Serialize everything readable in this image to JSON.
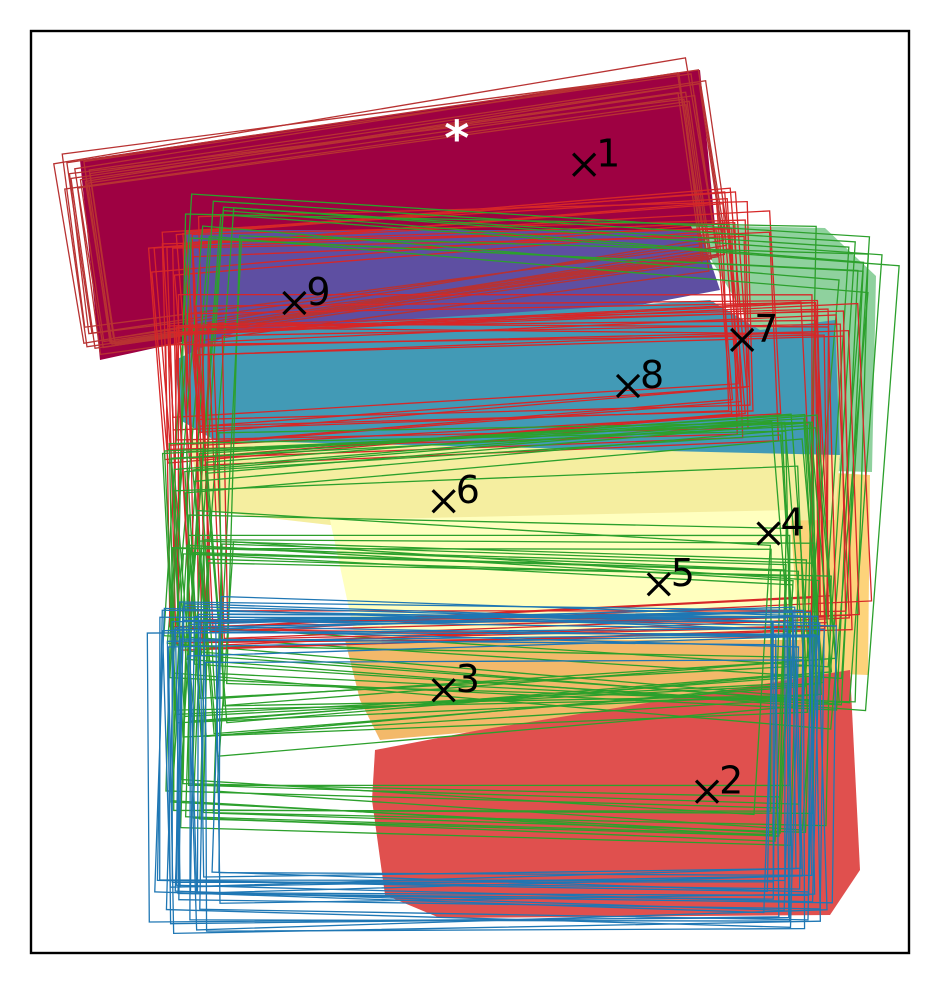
{
  "chart_data": {
    "type": "scatter",
    "title": "",
    "xlabel": "",
    "ylabel": "",
    "xlim": [
      0,
      1
    ],
    "ylim": [
      0,
      1
    ],
    "axes_ticks": "none",
    "grid": false,
    "legend": "none",
    "description_of_marks": "overlapping rotated rectangle outlines grouped into colored regions, with cluster centers marked by x and numbered",
    "palette": {
      "c1": "#9e0142",
      "c2": "#d53e4f",
      "c3": "#f46d43",
      "c4": "#fdae61",
      "c5": "#fee08b",
      "c6": "#ffffbf",
      "c7": "#abdda4",
      "c8": "#3288bd",
      "c9": "#5e4fa2",
      "outline_red": "#d62728",
      "outline_green": "#2ca02c",
      "outline_blue": "#1f77b4",
      "outline_darkred": "#b83232"
    },
    "regions": [
      {
        "id": "1",
        "fill": "#9e0142",
        "outline": "#b83232"
      },
      {
        "id": "9",
        "fill": "#5e4fa2",
        "outline": "#d62728"
      },
      {
        "id": "7",
        "fill": "#8fd19e",
        "outline": "#2ca02c"
      },
      {
        "id": "8",
        "fill": "#429ab6",
        "outline": "#d62728"
      },
      {
        "id": "4",
        "fill": "#fdd37a",
        "outline": "#2ca02c"
      },
      {
        "id": "6",
        "fill": "#f5eea0",
        "outline": "#d62728"
      },
      {
        "id": "5",
        "fill": "#ffffbf",
        "outline": "#2ca02c"
      },
      {
        "id": "3",
        "fill": "#f3b96a",
        "outline": "#2ca02c"
      },
      {
        "id": "2",
        "fill": "#e0504e",
        "outline": "#1f77b4"
      }
    ],
    "centers": [
      {
        "label": "1",
        "x": 0.63,
        "y": 0.855
      },
      {
        "label": "2",
        "x": 0.77,
        "y": 0.175
      },
      {
        "label": "3",
        "x": 0.47,
        "y": 0.285
      },
      {
        "label": "4",
        "x": 0.84,
        "y": 0.455
      },
      {
        "label": "5",
        "x": 0.715,
        "y": 0.4
      },
      {
        "label": "6",
        "x": 0.47,
        "y": 0.49
      },
      {
        "label": "7",
        "x": 0.81,
        "y": 0.665
      },
      {
        "label": "8",
        "x": 0.68,
        "y": 0.615
      },
      {
        "label": "9",
        "x": 0.3,
        "y": 0.705
      }
    ],
    "special_marker": {
      "symbol": "*",
      "x": 0.485,
      "y": 0.885
    }
  }
}
